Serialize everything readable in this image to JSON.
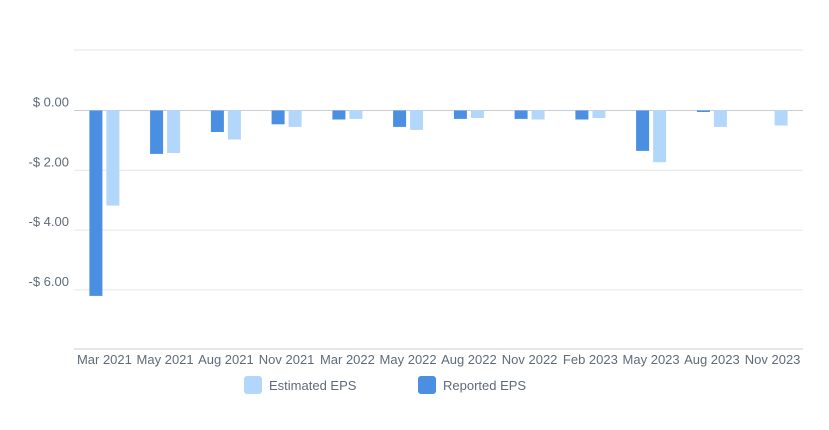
{
  "chart_data": {
    "type": "bar",
    "categories": [
      "Mar 2021",
      "May 2021",
      "Aug 2021",
      "Nov 2021",
      "Mar 2022",
      "May 2022",
      "Aug 2022",
      "Nov 2022",
      "Feb 2023",
      "May 2023",
      "Aug 2023",
      "Nov 2023"
    ],
    "series": [
      {
        "name": "Reported EPS",
        "color": "#4a8fe2",
        "values": [
          -6.2,
          -1.45,
          -0.72,
          -0.46,
          -0.3,
          -0.55,
          -0.28,
          -0.28,
          -0.3,
          -1.35,
          -0.03,
          null
        ]
      },
      {
        "name": "Estimated EPS",
        "color": "#b3d6fb",
        "values": [
          -3.18,
          -1.42,
          -0.97,
          -0.55,
          -0.28,
          -0.65,
          -0.25,
          -0.3,
          -0.25,
          -1.73,
          -0.55,
          -0.5
        ]
      }
    ],
    "yticks": [
      0,
      -2,
      -4,
      -6
    ],
    "ytick_labels": [
      "$ 0.00",
      "-$ 2.00",
      "-$ 4.00",
      "-$ 6.00"
    ],
    "ylim": [
      -8,
      2
    ],
    "legend": [
      {
        "label": "Estimated EPS",
        "color": "#b3d6fb"
      },
      {
        "label": "Reported EPS",
        "color": "#4a8fe2"
      }
    ],
    "legend_position": "bottom",
    "grid": true
  }
}
